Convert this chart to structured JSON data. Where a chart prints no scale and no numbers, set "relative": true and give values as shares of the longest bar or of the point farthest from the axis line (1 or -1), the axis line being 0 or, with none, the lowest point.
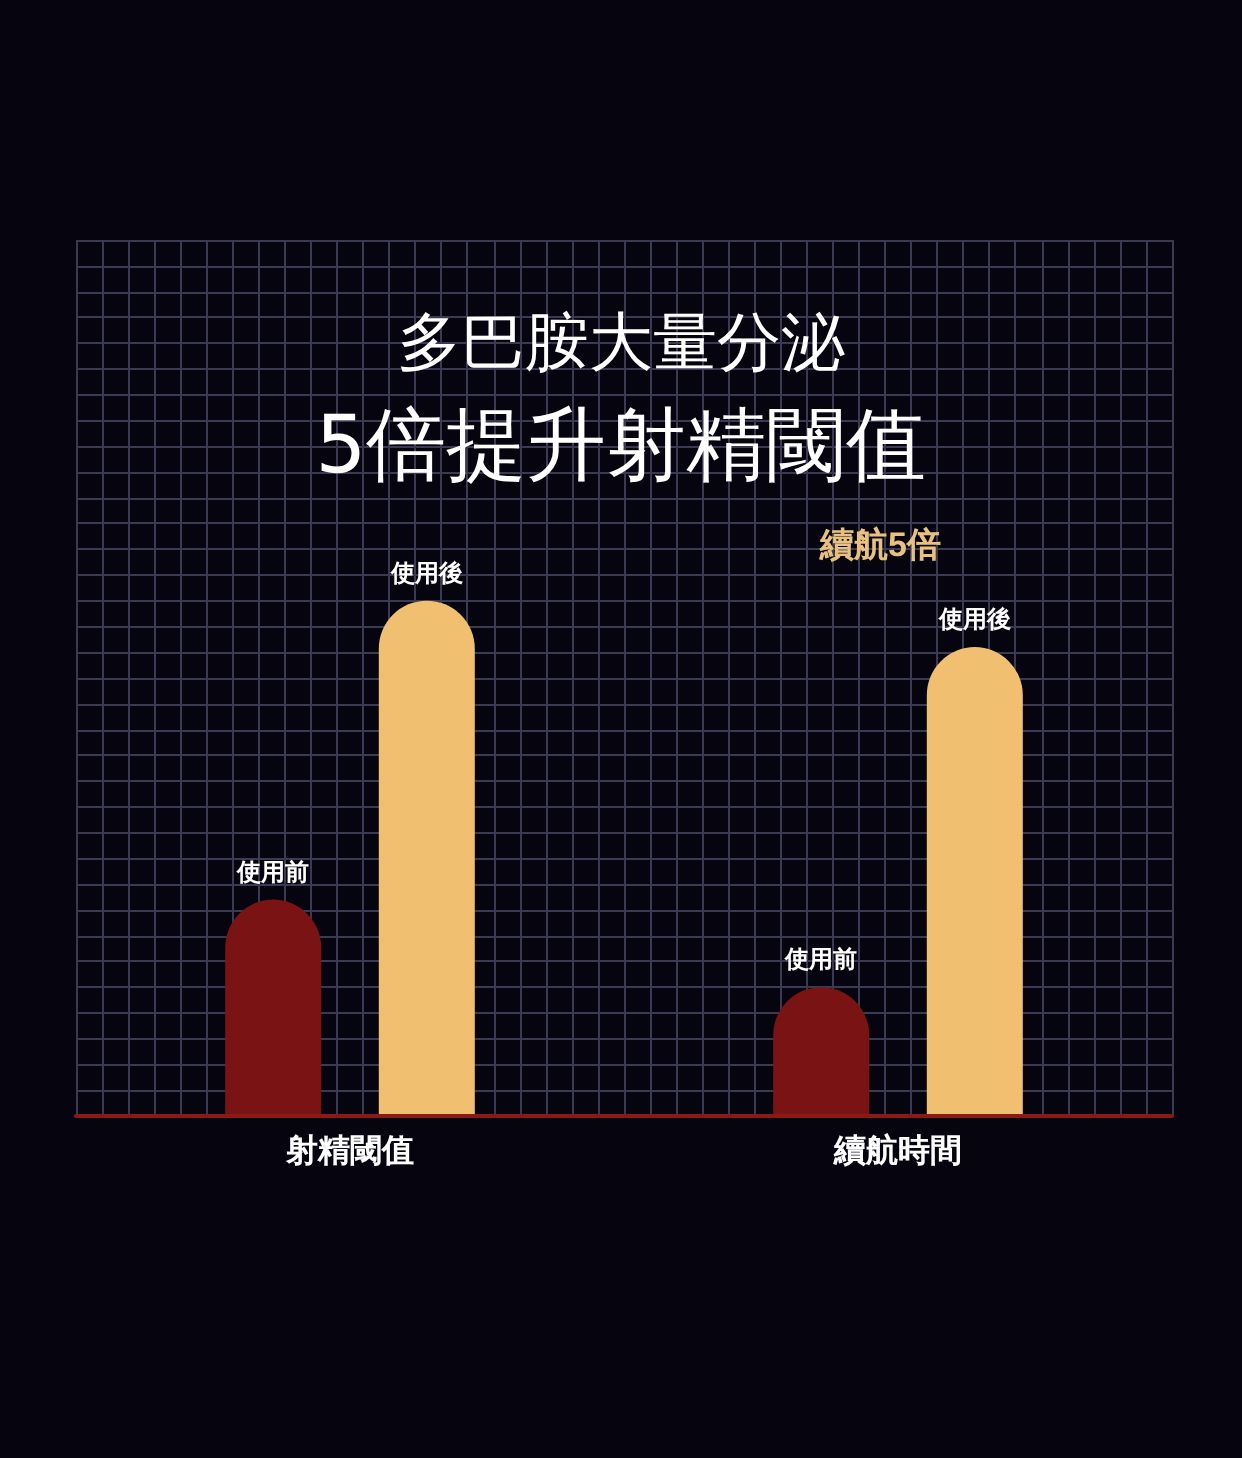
{
  "chart_data": {
    "type": "bar",
    "title": "多巴胺大量分泌",
    "subtitle": "5倍提升射精閾值",
    "relative": true,
    "grid": true,
    "legend": false,
    "categories": [
      "射精閾值",
      "續航時間"
    ],
    "series": [
      {
        "name": "使用前",
        "color": "#7a1414",
        "values": [
          0.42,
          0.25
        ]
      },
      {
        "name": "使用後",
        "color": "#f0c070",
        "values": [
          1,
          0.91
        ]
      }
    ],
    "annotations": [
      "續航5倍"
    ]
  }
}
